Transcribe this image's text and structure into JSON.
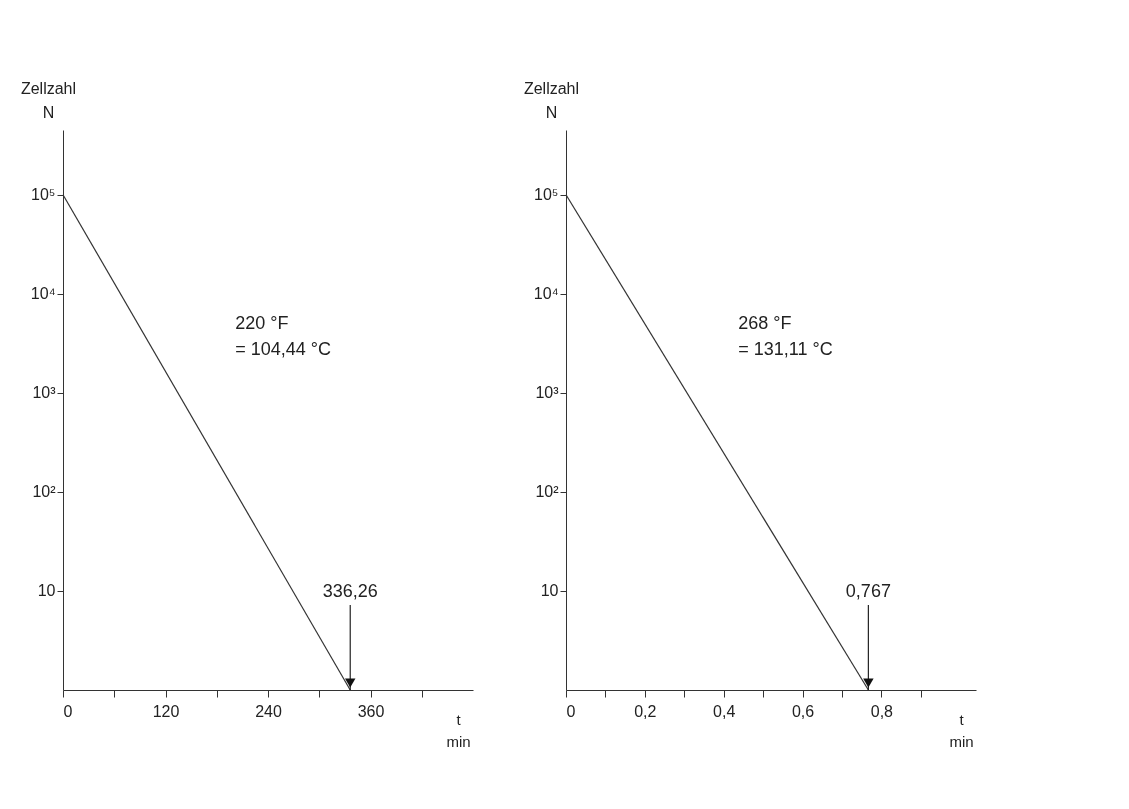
{
  "chart_data": [
    {
      "type": "line",
      "xlabel": "t\nmin",
      "ylabel": "Zellzahl\nN",
      "log": "y",
      "x": [
        0,
        336.26
      ],
      "series": [
        {
          "color": "#333333",
          "values": [
            100000,
            1
          ]
        }
      ],
      "xlim": [
        0,
        480
      ],
      "xticks": [
        0,
        {
          "value": 60,
          "label": null
        },
        120,
        {
          "value": 180,
          "label": null
        },
        240,
        {
          "value": 300,
          "label": null
        },
        360,
        {
          "value": 420,
          "label": null
        }
      ],
      "ylim": [
        1,
        450000
      ],
      "yticks": [
        10,
        {
          "value": 100,
          "label": "10²"
        },
        {
          "value": 1000,
          "label": "10³"
        },
        {
          "value": 10000,
          "label": "10⁴"
        },
        {
          "value": 100000,
          "label": "10⁵"
        }
      ],
      "annotations": [
        "220 °F\n= 104,44 °C",
        {
          "text": "336,26",
          "x": 336.26,
          "y": 1
        }
      ]
    },
    {
      "type": "line",
      "xlabel": "t\nmin",
      "ylabel": "Zellzahl\nN",
      "log": "y",
      "x": [
        0,
        0.767
      ],
      "series": [
        {
          "color": "#333333",
          "values": [
            100000,
            1
          ]
        }
      ],
      "xlim": [
        0,
        1.04
      ],
      "xticks": [
        0,
        {
          "value": 0.1,
          "label": null
        },
        {
          "value": 0.2,
          "label": "0,2"
        },
        {
          "value": 0.3,
          "label": null
        },
        {
          "value": 0.4,
          "label": "0,4"
        },
        {
          "value": 0.5,
          "label": null
        },
        {
          "value": 0.6,
          "label": "0,6"
        },
        {
          "value": 0.7,
          "label": null
        },
        {
          "value": 0.8,
          "label": "0,8"
        },
        {
          "value": 0.9,
          "label": null
        }
      ],
      "ylim": [
        1,
        450000
      ],
      "yticks": [
        10,
        {
          "value": 100,
          "label": "10²"
        },
        {
          "value": 1000,
          "label": "10³"
        },
        {
          "value": 10000,
          "label": "10⁴"
        },
        {
          "value": 100000,
          "label": "10⁵"
        }
      ],
      "annotations": [
        "268 °F\n= 131,11 °C",
        {
          "text": "0,767",
          "x": 0.767,
          "y": 1
        }
      ]
    }
  ]
}
